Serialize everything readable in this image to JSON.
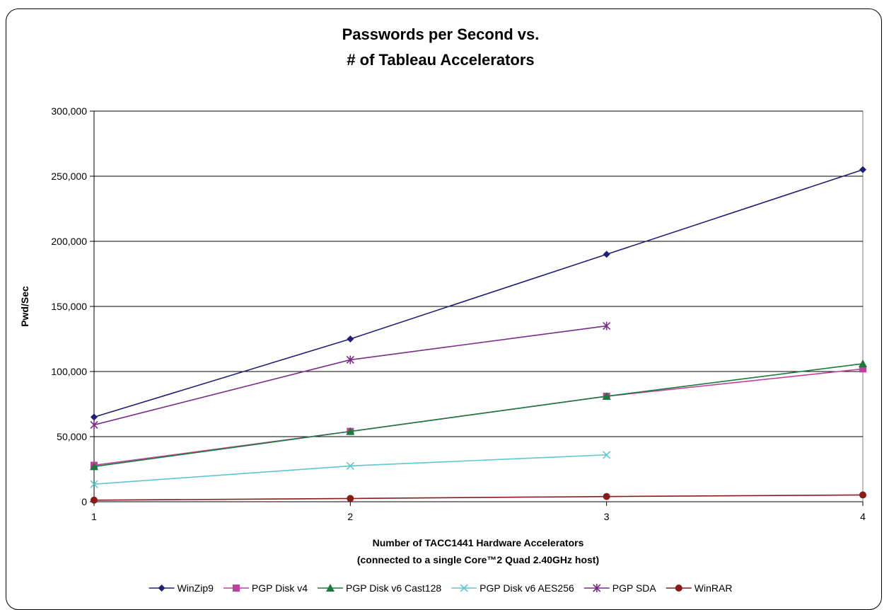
{
  "chart_data": {
    "type": "line",
    "title_lines": [
      "Passwords per Second vs.",
      "# of Tableau Accelerators"
    ],
    "xlabel_lines": [
      "Number of TACC1441 Hardware Accelerators",
      "(connected to a single Core™2 Quad 2.40GHz host)"
    ],
    "ylabel": "Pwd/Sec",
    "x_ticks": [
      "1",
      "2",
      "3",
      "4"
    ],
    "y_ticks": [
      "0",
      "50,000",
      "100,000",
      "150,000",
      "200,000",
      "250,000",
      "300,000"
    ],
    "xlim": [
      1,
      4
    ],
    "ylim": [
      0,
      300000
    ],
    "grid": "horizontal",
    "legend_position": "bottom",
    "series": [
      {
        "name": "WinZip9",
        "color": "#1f1f7a",
        "marker": "diamond",
        "x": [
          1,
          2,
          3,
          4
        ],
        "values": [
          65000,
          125000,
          190000,
          255000
        ]
      },
      {
        "name": "PGP Disk v4",
        "color": "#c040a0",
        "marker": "square",
        "x": [
          1,
          2,
          3,
          4
        ],
        "values": [
          28000,
          54000,
          81000,
          102000
        ]
      },
      {
        "name": "PGP Disk v6 Cast128",
        "color": "#1a7a3a",
        "marker": "triangle",
        "x": [
          1,
          2,
          3,
          4
        ],
        "values": [
          27000,
          54000,
          81000,
          106000
        ]
      },
      {
        "name": "PGP Disk v6 AES256",
        "color": "#5cc8d0",
        "marker": "x",
        "x": [
          1,
          2,
          3
        ],
        "values": [
          13500,
          27500,
          36000
        ]
      },
      {
        "name": "PGP SDA",
        "color": "#7a2a8a",
        "marker": "asterisk",
        "x": [
          1,
          2,
          3
        ],
        "values": [
          59000,
          109000,
          135000
        ]
      },
      {
        "name": "WinRAR",
        "color": "#8b1a1a",
        "marker": "circle",
        "x": [
          1,
          2,
          3,
          4
        ],
        "values": [
          1200,
          2500,
          4000,
          5200
        ]
      }
    ]
  }
}
